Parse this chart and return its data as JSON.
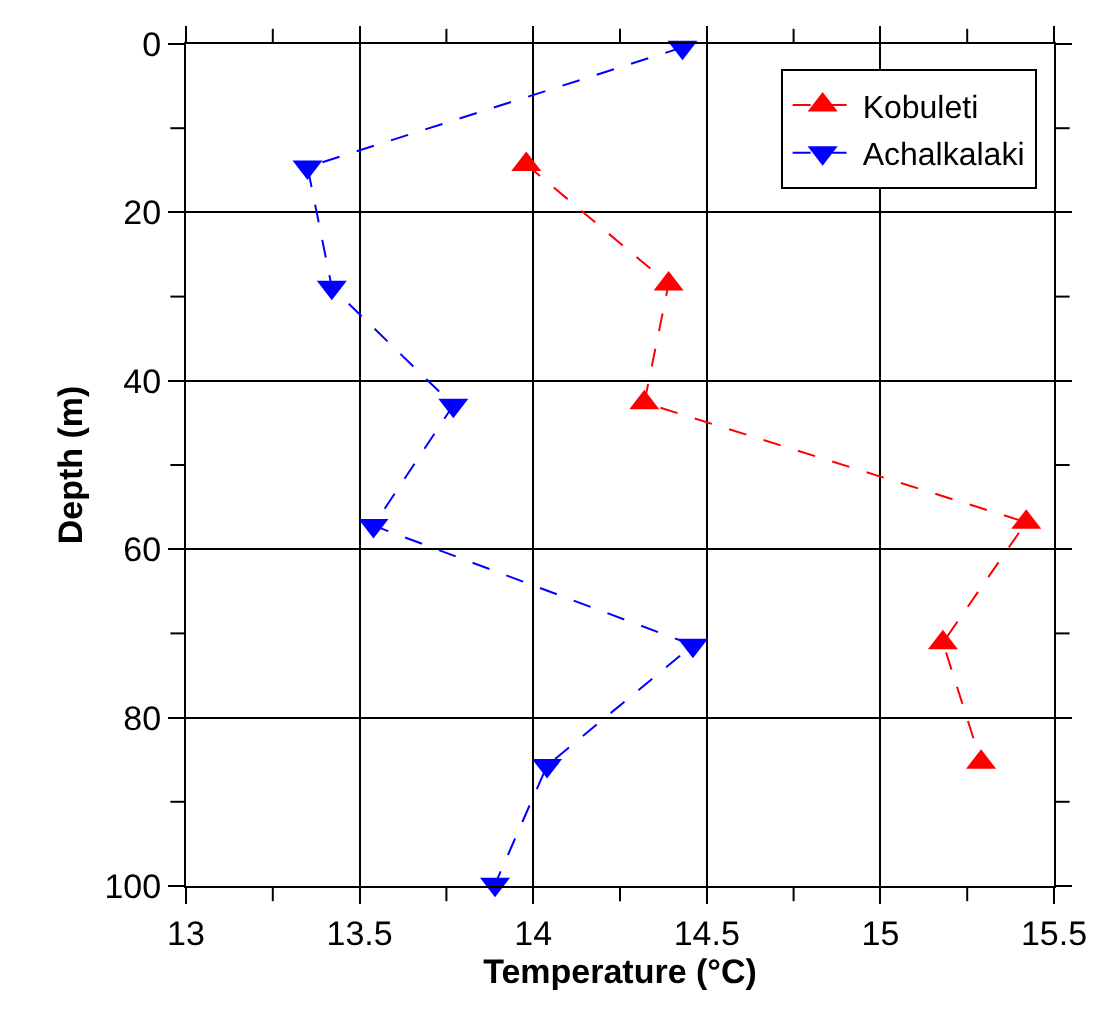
{
  "chart_data": {
    "type": "line",
    "xlabel": "Temperature (°C)",
    "ylabel": "Depth (m)",
    "series": [
      {
        "name": "Kobuleti",
        "color": "#ff0000",
        "marker": "triangle-up",
        "x": [
          13.98,
          14.39,
          14.32,
          15.42,
          15.18,
          15.29
        ],
        "values": [
          14.3,
          28.5,
          42.6,
          56.8,
          71.1,
          85.3
        ]
      },
      {
        "name": "Achalkalaki",
        "color": "#0000ff",
        "marker": "triangle-down",
        "x": [
          14.43,
          13.35,
          13.42,
          13.77,
          13.54,
          14.46,
          14.04,
          13.89
        ],
        "values": [
          0.4,
          14.6,
          28.9,
          42.9,
          57.2,
          71.4,
          85.7,
          99.8
        ]
      }
    ],
    "line_style": "dashed",
    "xlim": [
      13,
      15.5
    ],
    "xticks": [
      13,
      {
        "value": 13.25,
        "label": null
      },
      13.5,
      {
        "value": 13.75,
        "label": null
      },
      14,
      {
        "value": 14.25,
        "label": null
      },
      14.5,
      {
        "value": 14.75,
        "label": null
      },
      15,
      {
        "value": 15.25,
        "label": null
      },
      15.5
    ],
    "ylim": [
      100,
      0
    ],
    "yticks": [
      0,
      {
        "value": 10,
        "label": null
      },
      20,
      {
        "value": 30,
        "label": null
      },
      40,
      {
        "value": 50,
        "label": null
      },
      60,
      {
        "value": 70,
        "label": null
      },
      80,
      {
        "value": 90,
        "label": null
      },
      100
    ],
    "grid": true,
    "legend": "top right"
  }
}
